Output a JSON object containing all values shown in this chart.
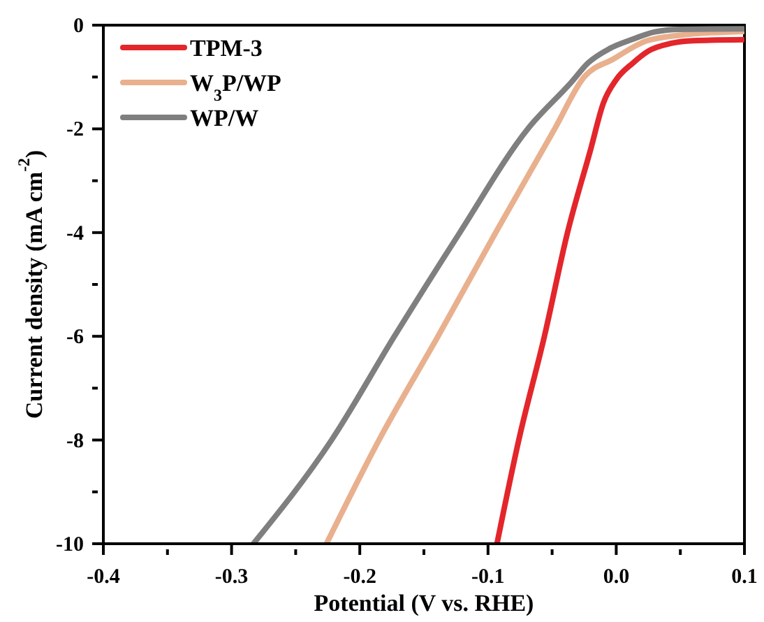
{
  "chart_data": {
    "type": "line",
    "xlabel": "Potential (V vs. RHE)",
    "ylabel": "Current density (mA cm$^{-2}$)",
    "xlim": [
      -0.4,
      0.1
    ],
    "ylim": [
      -10,
      0
    ],
    "xticks": [
      -0.4,
      {
        "value": -0.35,
        "label": null
      },
      -0.3,
      {
        "value": -0.25,
        "label": null
      },
      -0.2,
      {
        "value": -0.15,
        "label": null
      },
      -0.1,
      {
        "value": -0.05,
        "label": null
      },
      {
        "value": 0,
        "label": "0.0"
      },
      {
        "value": 0.05,
        "label": null
      },
      0.1
    ],
    "yticks": [
      -10,
      {
        "value": -9,
        "label": null
      },
      -8,
      {
        "value": -7,
        "label": null
      },
      -6,
      {
        "value": -5,
        "label": null
      },
      -4,
      {
        "value": -3,
        "label": null
      },
      -2,
      {
        "value": -1,
        "label": null
      },
      0
    ],
    "grid": false,
    "legend": "top left",
    "marker": "none",
    "line_style": "solid",
    "series": [
      {
        "name": "TPM-3",
        "color": "#e3262b",
        "x": [
          -0.093,
          -0.076,
          -0.056,
          -0.038,
          -0.02,
          -0.01,
          0,
          0.013,
          0.025,
          0.043,
          0.06,
          0.1
        ],
        "values": [
          -10,
          -8,
          -6,
          -4,
          -2.4,
          -1.5,
          -1.05,
          -0.73,
          -0.5,
          -0.35,
          -0.3,
          -0.28
        ]
      },
      {
        "name": "W$_{3}$P/WP",
        "color": "#e9b08e",
        "x": [
          -0.226,
          -0.185,
          -0.139,
          -0.094,
          -0.048,
          -0.025,
          -0.002,
          0.024,
          0.055,
          0.1
        ],
        "values": [
          -10,
          -8,
          -6,
          -4,
          -2,
          -1,
          -0.65,
          -0.3,
          -0.18,
          -0.12
        ]
      },
      {
        "name": "WP/W",
        "color": "#7f7f7f",
        "x": [
          -0.283,
          -0.222,
          -0.173,
          -0.122,
          -0.069,
          -0.035,
          -0.022,
          -0.005,
          0.013,
          0.03,
          0.05,
          0.1
        ],
        "values": [
          -10,
          -8,
          -6,
          -4,
          -2,
          -1.1,
          -0.73,
          -0.45,
          -0.27,
          -0.13,
          -0.08,
          -0.07
        ]
      }
    ]
  }
}
